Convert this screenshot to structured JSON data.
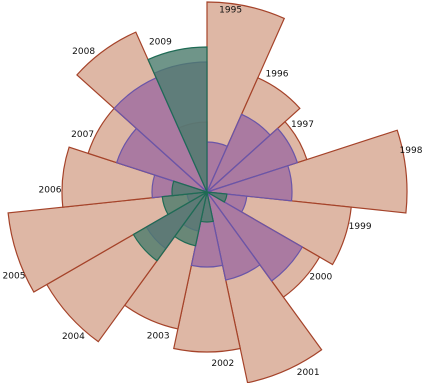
{
  "chart_data": {
    "type": "polar-area",
    "categories": [
      "1995",
      "1996",
      "1997",
      "1998",
      "1999",
      "2000",
      "2001",
      "2002",
      "2003",
      "2004",
      "2005",
      "2006",
      "2007",
      "2008",
      "2009"
    ],
    "series": [
      {
        "values": [
          190,
          125,
          105,
          200,
          145,
          130,
          195,
          160,
          140,
          185,
          200,
          145,
          125,
          175,
          70
        ]
      },
      {
        "values": [
          50,
          85,
          95,
          85,
          40,
          110,
          90,
          75,
          40,
          70,
          20,
          55,
          95,
          125,
          130
        ]
      },
      {
        "values": [
          0,
          0,
          0,
          0,
          20,
          0,
          0,
          30,
          55,
          85,
          45,
          35,
          0,
          0,
          145
        ]
      }
    ],
    "colors": {
      "series_fill": [
        "#d8aa95",
        "#9c6aa0",
        "#4b7a6c"
      ],
      "series_stroke": [
        "#a5432a",
        "#6a55a8",
        "#1f6b55"
      ]
    },
    "grid": false,
    "legend": "none"
  }
}
